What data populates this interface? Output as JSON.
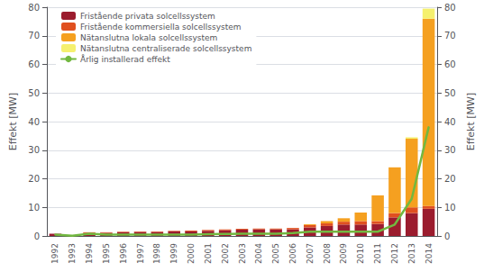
{
  "chart_data": {
    "type": "bar",
    "stacked": true,
    "categories": [
      "1992",
      "1993",
      "1994",
      "1995",
      "1996",
      "1997",
      "1998",
      "1999",
      "2000",
      "2001",
      "2002",
      "2003",
      "2004",
      "2005",
      "2006",
      "2007",
      "2008",
      "2009",
      "2010",
      "2011",
      "2012",
      "2013",
      "2014"
    ],
    "ylabel": "Effekt [MW]",
    "y2label": "Effekt [MW]",
    "ylim": [
      0,
      80
    ],
    "yticks": [
      0,
      10,
      20,
      30,
      40,
      50,
      60,
      70,
      80
    ],
    "y2lim": [
      0,
      80
    ],
    "y2ticks": [
      0,
      10,
      20,
      30,
      40,
      50,
      60,
      70,
      80
    ],
    "grid": true,
    "legend": "upper left",
    "series": [
      {
        "name": "Fristående privata solcellssystem",
        "type": "bar",
        "color": "#9b1c2e",
        "values": [
          0.8,
          0.2,
          1.0,
          1.1,
          1.3,
          1.4,
          1.4,
          1.6,
          1.6,
          1.8,
          2.0,
          2.2,
          2.3,
          2.3,
          2.3,
          3.0,
          3.5,
          4.0,
          4.0,
          4.2,
          6.5,
          8.0,
          9.5
        ]
      },
      {
        "name": "Fristående kommersiella solcellssystem",
        "type": "bar",
        "color": "#e05020",
        "values": [
          0,
          0,
          0.3,
          0.2,
          0.2,
          0.2,
          0.2,
          0.2,
          0.3,
          0.3,
          0.3,
          0.3,
          0.3,
          0.3,
          0.5,
          0.8,
          0.9,
          1.0,
          1.2,
          1.0,
          1.5,
          2.0,
          1.0
        ]
      },
      {
        "name": "Nätanslutna lokala solcellssystem",
        "type": "bar",
        "color": "#f5a020",
        "values": [
          0,
          0,
          0,
          0,
          0,
          0,
          0,
          0,
          0,
          0,
          0,
          0,
          0,
          0,
          0,
          0.3,
          0.8,
          1.2,
          3.0,
          9.0,
          16.0,
          24.0,
          65.5
        ]
      },
      {
        "name": "Nätanslutna centraliserade solcellssystem",
        "type": "bar",
        "color": "#f5f06e",
        "values": [
          0,
          0,
          0,
          0,
          0,
          0,
          0,
          0,
          0,
          0,
          0,
          0,
          0,
          0,
          0,
          0,
          0,
          0,
          0,
          0,
          0,
          0.5,
          3.5
        ]
      },
      {
        "name": "Årlig installerad effekt",
        "type": "line",
        "axis": "y2",
        "color": "#72b840",
        "values": [
          0.5,
          0.1,
          0.8,
          0.5,
          0.5,
          0.5,
          0.5,
          0.5,
          0.5,
          0.6,
          0.7,
          0.8,
          0.8,
          0.8,
          1.0,
          1.5,
          1.5,
          1.5,
          1.5,
          1.5,
          4.0,
          13.0,
          38.0
        ]
      }
    ]
  }
}
